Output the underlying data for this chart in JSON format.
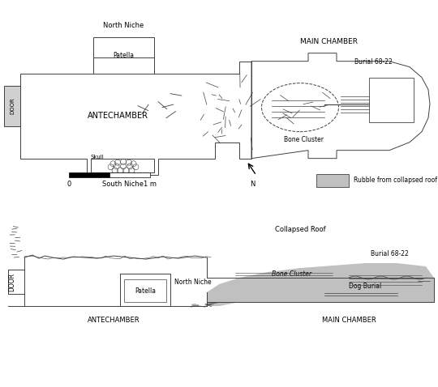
{
  "bg_color": "#ffffff",
  "line_color": "#404040",
  "rubble_color": "#c0c0c0",
  "lw": 0.7,
  "labels": {
    "north_niche_plan": "North Niche",
    "patella_plan": "Patella",
    "antechamber_plan": "ANTECHAMBER",
    "main_chamber_plan": "MAIN CHAMBER",
    "burial_plan": "Burial 68-22",
    "bone_cluster_plan": "Bone Cluster",
    "skull_plan": "Skull",
    "south_niche_plan": "South Niche",
    "door_plan": "DOOR",
    "north_label": "N",
    "scale_0": "0",
    "scale_1m": "1 m",
    "rubble_legend": "Rubble from collapsed roof",
    "patella_profile": "Patella",
    "north_niche_profile": "North Niche",
    "antechamber_profile": "ANTECHAMBER",
    "main_chamber_profile": "MAIN CHAMBER",
    "door_profile": "DOOR",
    "collapsed_roof_profile": "Collapsed Roof",
    "bone_cluster_profile": "Bone Cluster",
    "burial_profile": "Burial 68-22",
    "dog_burial_profile": "Dog Burial"
  }
}
